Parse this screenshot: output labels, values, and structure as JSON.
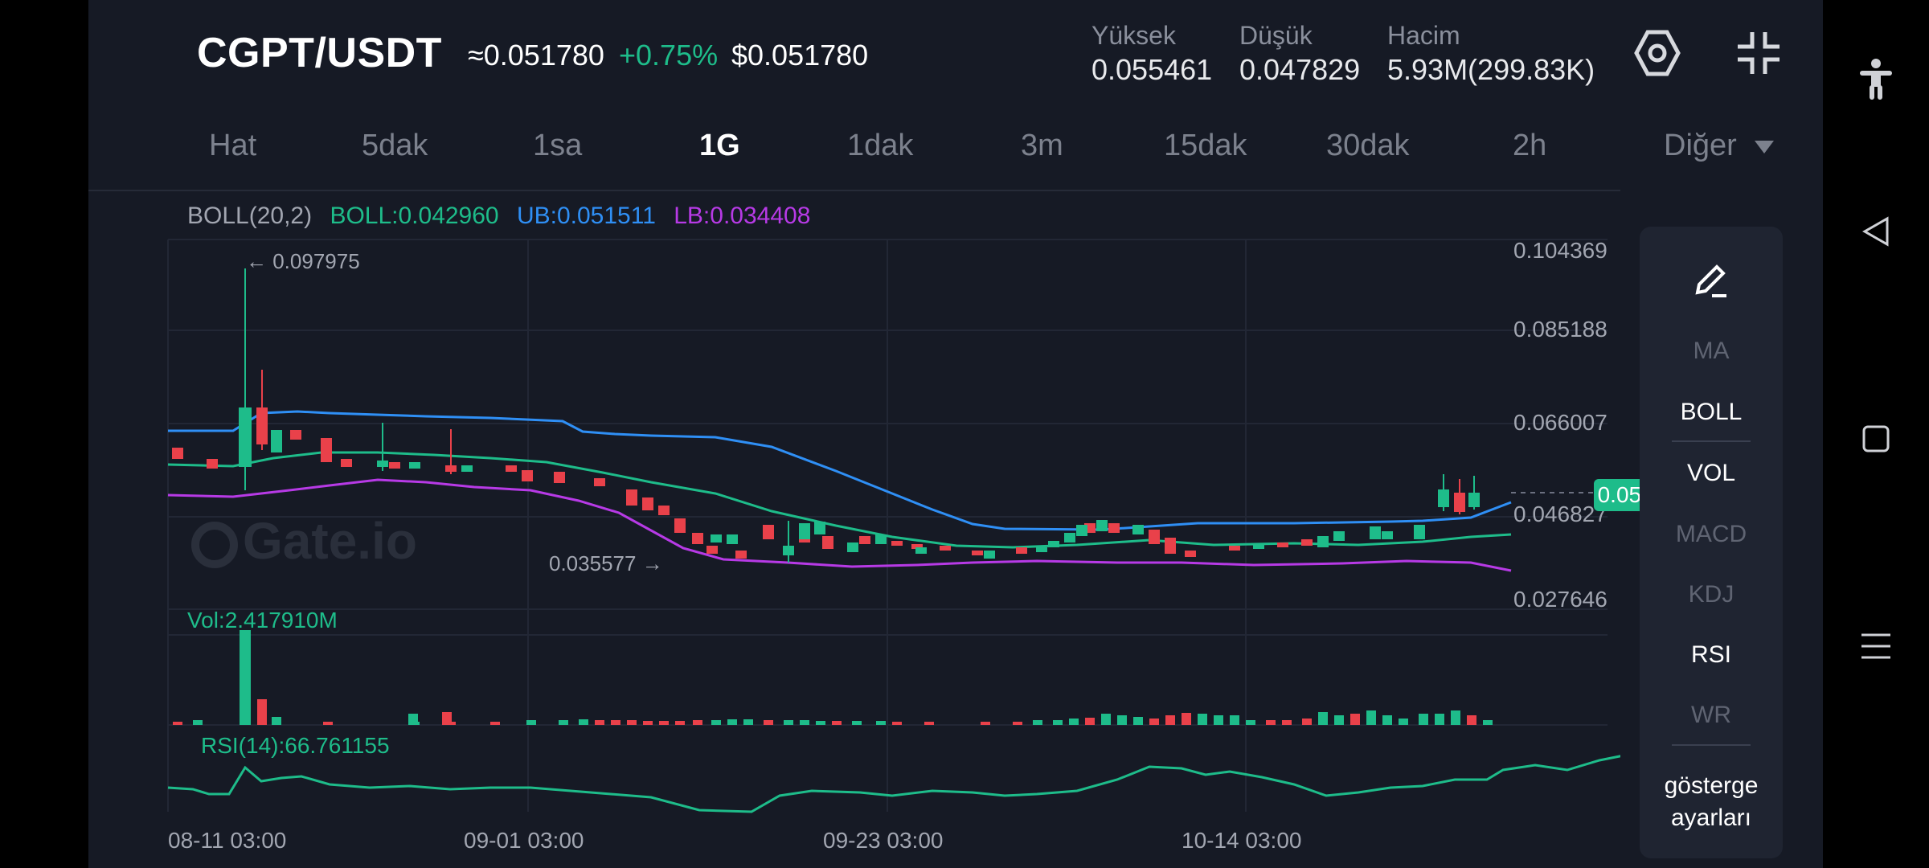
{
  "header": {
    "pair": "CGPT/USDT",
    "approx_price": "≈0.051780",
    "change": "+0.75%",
    "usd_price": "$0.051780",
    "high_label": "Yüksek",
    "high_value": "0.055461",
    "low_label": "Düşük",
    "low_value": "0.047829",
    "vol_label": "Hacim",
    "vol_value": "5.93M(299.83K)"
  },
  "tabs": [
    "Hat",
    "5dak",
    "1sa",
    "1G",
    "1dak",
    "3m",
    "15dak",
    "30dak",
    "2h"
  ],
  "active_tab": "1G",
  "more_label": "Diğer",
  "legend": {
    "boll": "BOLL(20,2)",
    "mid": "BOLL:0.042960",
    "ub": "UB:0.051511",
    "lb": "LB:0.034408"
  },
  "y_axis": [
    "0.104369",
    "0.085188",
    "0.066007",
    "0.046827",
    "0.027646"
  ],
  "current_price": "0.051780",
  "max_marker": "← 0.097975",
  "min_marker": "0.035577 →",
  "watermark": "Gate.io",
  "vol_label": "Vol:2.417910M",
  "rsi_label": "RSI(14):66.761155",
  "x_axis": [
    "08-11 03:00",
    "09-01 03:00",
    "09-23 03:00",
    "10-14 03:00"
  ],
  "sidebar": [
    "MA",
    "BOLL",
    "VOL",
    "MACD",
    "KDJ",
    "RSI",
    "WR"
  ],
  "sidebar_active": [
    "BOLL",
    "VOL",
    "RSI"
  ],
  "indicator_settings": "gösterge ayarları",
  "colors": {
    "up": "#1ebc8a",
    "down": "#e9414a",
    "ub": "#2f8ff5",
    "mid": "#1ebc8a",
    "lb": "#b73ae6",
    "bg": "#161a25"
  },
  "chart_data": {
    "type": "candlestick",
    "ylim": [
      0.027646,
      0.104369
    ],
    "max_price": 0.097975,
    "min_price": 0.035577
  }
}
